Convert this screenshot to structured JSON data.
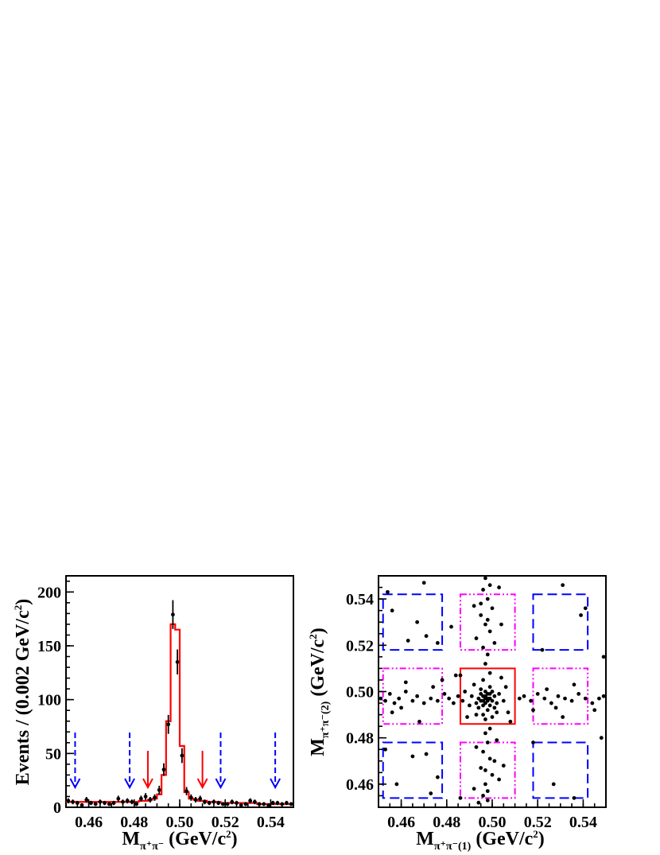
{
  "chart_data": [
    {
      "type": "histogram",
      "xlabel": {
        "base": "M",
        "sub": "π⁺π⁻",
        "unit": " (GeV/c",
        "unit_sup": "2",
        "unit_close": ")"
      },
      "ylabel": {
        "text": "Events / (0.002 GeV/c",
        "sup": "2",
        "close": ")"
      },
      "xlim": [
        0.45,
        0.55
      ],
      "ylim": [
        0,
        215
      ],
      "xticks": [
        0.46,
        0.48,
        0.5,
        0.52,
        0.54
      ],
      "xtick_labels": [
        "0.46",
        "0.48",
        "0.50",
        "0.52",
        "0.54"
      ],
      "yticks": [
        0,
        50,
        100,
        150,
        200
      ],
      "ytick_labels": [
        "0",
        "50",
        "100",
        "150",
        "200"
      ],
      "data_points": {
        "x": [
          0.451,
          0.453,
          0.455,
          0.457,
          0.459,
          0.461,
          0.463,
          0.465,
          0.467,
          0.469,
          0.471,
          0.473,
          0.475,
          0.477,
          0.479,
          0.481,
          0.483,
          0.485,
          0.487,
          0.489,
          0.491,
          0.493,
          0.495,
          0.497,
          0.499,
          0.501,
          0.503,
          0.505,
          0.507,
          0.509,
          0.511,
          0.513,
          0.515,
          0.517,
          0.519,
          0.521,
          0.523,
          0.525,
          0.527,
          0.529,
          0.531,
          0.533,
          0.535,
          0.537,
          0.539,
          0.541,
          0.543,
          0.545,
          0.547,
          0.549
        ],
        "y": [
          6,
          5,
          4,
          2,
          7,
          4,
          3,
          5,
          4,
          3,
          4,
          8,
          5,
          6,
          5,
          3,
          8,
          10,
          7,
          9,
          16,
          35,
          77,
          179,
          135,
          48,
          15,
          9,
          7,
          8,
          5,
          4,
          5,
          4,
          3,
          3,
          5,
          4,
          2,
          3,
          6,
          5,
          3,
          3,
          2,
          4,
          4,
          3,
          4,
          3
        ],
        "err": [
          2.4,
          2.2,
          2,
          1.4,
          2.6,
          2,
          1.7,
          2.2,
          2,
          1.7,
          2,
          2.8,
          2.2,
          2.4,
          2.2,
          1.7,
          2.8,
          3.2,
          2.6,
          3,
          4,
          5.9,
          8.8,
          13.4,
          11.6,
          6.9,
          3.9,
          3,
          2.6,
          2.8,
          2.2,
          2,
          2.2,
          2,
          1.7,
          1.7,
          2.2,
          2,
          1.4,
          1.7,
          2.4,
          2.2,
          1.7,
          1.7,
          1.4,
          2,
          2,
          1.7,
          2,
          1.7
        ]
      },
      "fit_histogram": {
        "x_edges_start": 0.45,
        "bin_width": 0.002,
        "values": [
          5,
          5,
          5,
          5,
          5,
          5,
          5,
          5,
          5,
          5,
          5,
          5,
          5,
          5,
          5,
          5,
          6,
          6,
          7,
          8,
          12,
          30,
          80,
          170,
          165,
          57,
          14,
          8,
          7,
          6,
          6,
          5,
          5,
          5,
          4,
          4,
          4,
          4,
          4,
          4,
          4,
          4,
          3,
          3,
          3,
          3,
          3,
          3,
          3,
          3
        ]
      },
      "signal_arrows": [
        0.486,
        0.51
      ],
      "sideband_arrows": [
        0.454,
        0.478,
        0.518,
        0.542
      ],
      "colors": {
        "data": "#000000",
        "fit": "#ff0000",
        "signal_arrow": "#ff0000",
        "sideband_arrow": "#0000ff"
      }
    },
    {
      "type": "scatter",
      "xlabel": {
        "base": "M",
        "sub": "π⁺π⁻(1)",
        "unit": " (GeV/c",
        "unit_sup": "2",
        "unit_close": ")"
      },
      "ylabel": {
        "base": "M",
        "sub": "π⁺π⁻(2)",
        "unit": " (GeV/c",
        "unit_sup": "2",
        "unit_close": ")"
      },
      "xlim": [
        0.45,
        0.55
      ],
      "ylim": [
        0.45,
        0.55
      ],
      "xticks": [
        0.46,
        0.48,
        0.5,
        0.52,
        0.54
      ],
      "xtick_labels": [
        "0.46",
        "0.48",
        "0.50",
        "0.52",
        "0.54"
      ],
      "yticks": [
        0.46,
        0.48,
        0.5,
        0.52,
        0.54
      ],
      "ytick_labels": [
        "0.46",
        "0.48",
        "0.50",
        "0.52",
        "0.54"
      ],
      "points": [
        [
          0.497,
          0.497
        ],
        [
          0.498,
          0.496
        ],
        [
          0.496,
          0.498
        ],
        [
          0.499,
          0.497
        ],
        [
          0.497,
          0.495
        ],
        [
          0.495,
          0.496
        ],
        [
          0.498,
          0.499
        ],
        [
          0.5,
          0.496
        ],
        [
          0.496,
          0.494
        ],
        [
          0.494,
          0.497
        ],
        [
          0.499,
          0.494
        ],
        [
          0.501,
          0.498
        ],
        [
          0.497,
          0.5
        ],
        [
          0.493,
          0.495
        ],
        [
          0.502,
          0.495
        ],
        [
          0.495,
          0.501
        ],
        [
          0.499,
          0.502
        ],
        [
          0.491,
          0.498
        ],
        [
          0.503,
          0.499
        ],
        [
          0.498,
          0.492
        ],
        [
          0.49,
          0.494
        ],
        [
          0.505,
          0.496
        ],
        [
          0.496,
          0.505
        ],
        [
          0.493,
          0.49
        ],
        [
          0.502,
          0.491
        ],
        [
          0.488,
          0.5
        ],
        [
          0.506,
          0.502
        ],
        [
          0.497,
          0.488
        ],
        [
          0.492,
          0.503
        ],
        [
          0.5,
          0.489
        ],
        [
          0.487,
          0.496
        ],
        [
          0.504,
          0.506
        ],
        [
          0.498,
          0.497
        ],
        [
          0.497,
          0.498
        ],
        [
          0.496,
          0.496
        ],
        [
          0.499,
          0.499
        ],
        [
          0.495,
          0.499
        ],
        [
          0.5,
          0.5
        ],
        [
          0.494,
          0.493
        ],
        [
          0.501,
          0.493
        ],
        [
          0.489,
          0.489
        ],
        [
          0.507,
          0.491
        ],
        [
          0.486,
          0.507
        ],
        [
          0.508,
          0.487
        ],
        [
          0.496,
          0.49
        ],
        [
          0.497,
          0.549
        ],
        [
          0.499,
          0.546
        ],
        [
          0.496,
          0.544
        ],
        [
          0.498,
          0.54
        ],
        [
          0.5,
          0.536
        ],
        [
          0.495,
          0.533
        ],
        [
          0.497,
          0.529
        ],
        [
          0.499,
          0.526
        ],
        [
          0.493,
          0.523
        ],
        [
          0.501,
          0.521
        ],
        [
          0.496,
          0.519
        ],
        [
          0.498,
          0.516
        ],
        [
          0.504,
          0.529
        ],
        [
          0.492,
          0.537
        ],
        [
          0.503,
          0.545
        ],
        [
          0.497,
          0.512
        ],
        [
          0.499,
          0.508
        ],
        [
          0.495,
          0.538
        ],
        [
          0.498,
          0.531
        ],
        [
          0.497,
          0.482
        ],
        [
          0.498,
          0.478
        ],
        [
          0.496,
          0.474
        ],
        [
          0.499,
          0.471
        ],
        [
          0.495,
          0.467
        ],
        [
          0.5,
          0.464
        ],
        [
          0.497,
          0.46
        ],
        [
          0.498,
          0.457
        ],
        [
          0.496,
          0.455
        ],
        [
          0.494,
          0.452
        ],
        [
          0.501,
          0.47
        ],
        [
          0.493,
          0.476
        ],
        [
          0.503,
          0.462
        ],
        [
          0.492,
          0.458
        ],
        [
          0.499,
          0.484
        ],
        [
          0.497,
          0.466
        ],
        [
          0.498,
          0.453
        ],
        [
          0.502,
          0.479
        ],
        [
          0.486,
          0.454
        ],
        [
          0.505,
          0.468
        ],
        [
          0.451,
          0.497
        ],
        [
          0.453,
          0.496
        ],
        [
          0.455,
          0.499
        ],
        [
          0.457,
          0.495
        ],
        [
          0.459,
          0.497
        ],
        [
          0.462,
          0.5
        ],
        [
          0.465,
          0.496
        ],
        [
          0.467,
          0.498
        ],
        [
          0.47,
          0.495
        ],
        [
          0.473,
          0.497
        ],
        [
          0.476,
          0.496
        ],
        [
          0.479,
          0.499
        ],
        [
          0.481,
          0.497
        ],
        [
          0.483,
          0.495
        ],
        [
          0.485,
          0.498
        ],
        [
          0.456,
          0.491
        ],
        [
          0.46,
          0.493
        ],
        [
          0.468,
          0.487
        ],
        [
          0.474,
          0.502
        ],
        [
          0.462,
          0.504
        ],
        [
          0.512,
          0.497
        ],
        [
          0.514,
          0.498
        ],
        [
          0.517,
          0.496
        ],
        [
          0.52,
          0.499
        ],
        [
          0.523,
          0.497
        ],
        [
          0.526,
          0.495
        ],
        [
          0.529,
          0.498
        ],
        [
          0.532,
          0.497
        ],
        [
          0.535,
          0.496
        ],
        [
          0.538,
          0.499
        ],
        [
          0.541,
          0.497
        ],
        [
          0.544,
          0.495
        ],
        [
          0.547,
          0.497
        ],
        [
          0.549,
          0.498
        ],
        [
          0.518,
          0.492
        ],
        [
          0.524,
          0.501
        ],
        [
          0.531,
          0.489
        ],
        [
          0.536,
          0.503
        ],
        [
          0.528,
          0.493
        ],
        [
          0.545,
          0.492
        ],
        [
          0.454,
          0.543
        ],
        [
          0.456,
          0.535
        ],
        [
          0.463,
          0.522
        ],
        [
          0.467,
          0.53
        ],
        [
          0.471,
          0.524
        ],
        [
          0.476,
          0.521
        ],
        [
          0.47,
          0.547
        ],
        [
          0.458,
          0.46
        ],
        [
          0.465,
          0.472
        ],
        [
          0.471,
          0.473
        ],
        [
          0.473,
          0.456
        ],
        [
          0.476,
          0.463
        ],
        [
          0.453,
          0.475
        ],
        [
          0.541,
          0.536
        ],
        [
          0.539,
          0.533
        ],
        [
          0.531,
          0.546
        ],
        [
          0.536,
          0.454
        ],
        [
          0.527,
          0.46
        ],
        [
          0.548,
          0.48
        ],
        [
          0.549,
          0.515
        ],
        [
          0.478,
          0.505
        ],
        [
          0.484,
          0.507
        ],
        [
          0.482,
          0.528
        ],
        [
          0.522,
          0.518
        ],
        [
          0.518,
          0.478
        ]
      ],
      "signal_box": [
        [
          0.486,
          0.51
        ],
        [
          0.486,
          0.51
        ]
      ],
      "sideband_boxes_corner": [
        [
          [
            0.452,
            0.478
          ],
          [
            0.518,
            0.542
          ]
        ],
        [
          [
            0.518,
            0.542
          ],
          [
            0.518,
            0.542
          ]
        ],
        [
          [
            0.452,
            0.478
          ],
          [
            0.454,
            0.478
          ]
        ],
        [
          [
            0.518,
            0.542
          ],
          [
            0.454,
            0.478
          ]
        ]
      ],
      "sideband_boxes_edge": [
        [
          [
            0.486,
            0.51
          ],
          [
            0.518,
            0.542
          ]
        ],
        [
          [
            0.486,
            0.51
          ],
          [
            0.454,
            0.478
          ]
        ],
        [
          [
            0.452,
            0.478
          ],
          [
            0.486,
            0.51
          ]
        ],
        [
          [
            0.518,
            0.542
          ],
          [
            0.486,
            0.51
          ]
        ]
      ],
      "colors": {
        "points": "#000000",
        "signal_box": "#ff0000",
        "corner_box": "#0000ff",
        "edge_box": "#ff00ff"
      }
    }
  ]
}
